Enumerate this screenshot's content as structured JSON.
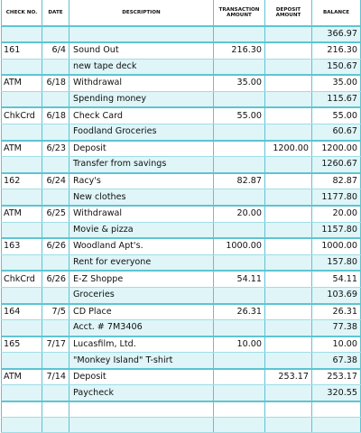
{
  "headers": {
    "check": "CHECK NO.",
    "date": "DATE",
    "description": "DESCRIPTION",
    "transaction": "TRANSACTION AMOUNT",
    "deposit": "DEPOSIT AMOUNT",
    "balance": "BALANCE"
  },
  "opening_balance": "366.97",
  "entries": [
    {
      "check": "161",
      "date": "6/4",
      "description": "Sound Out",
      "note": "new tape deck",
      "transaction": "216.30",
      "deposit": "",
      "balance_after_tx": "216.30",
      "balance": "150.67"
    },
    {
      "check": "ATM",
      "date": "6/18",
      "description": "Withdrawal",
      "note": "Spending money",
      "transaction": "35.00",
      "deposit": "",
      "balance_after_tx": "35.00",
      "balance": "115.67"
    },
    {
      "check": "ChkCrd",
      "date": "6/18",
      "description": "Check Card",
      "note": "Foodland Groceries",
      "transaction": "55.00",
      "deposit": "",
      "balance_after_tx": "55.00",
      "balance": "60.67"
    },
    {
      "check": "ATM",
      "date": "6/23",
      "description": "Deposit",
      "note": "Transfer from savings",
      "transaction": "",
      "deposit": "1200.00",
      "balance_after_tx": "1200.00",
      "balance": "1260.67"
    },
    {
      "check": "162",
      "date": "6/24",
      "description": "Racy's",
      "note": "New clothes",
      "transaction": "82.87",
      "deposit": "",
      "balance_after_tx": "82.87",
      "balance": "1177.80"
    },
    {
      "check": "ATM",
      "date": "6/25",
      "description": "Withdrawal",
      "note": "Movie & pizza",
      "transaction": "20.00",
      "deposit": "",
      "balance_after_tx": "20.00",
      "balance": "1157.80"
    },
    {
      "check": "163",
      "date": "6/26",
      "description": "Woodland Apt's.",
      "note": "Rent for everyone",
      "transaction": "1000.00",
      "deposit": "",
      "balance_after_tx": "1000.00",
      "balance": "157.80"
    },
    {
      "check": "ChkCrd",
      "date": "6/26",
      "description": "E-Z Shoppe",
      "note": "Groceries",
      "transaction": "54.11",
      "deposit": "",
      "balance_after_tx": "54.11",
      "balance": "103.69"
    },
    {
      "check": "164",
      "date": "7/5",
      "description": "CD Place",
      "note": "Acct. # 7M3406",
      "transaction": "26.31",
      "deposit": "",
      "balance_after_tx": "26.31",
      "balance": "77.38"
    },
    {
      "check": "165",
      "date": "7/17",
      "description": "Lucasfilm, Ltd.",
      "note": "\"Monkey Island\" T-shirt",
      "transaction": "10.00",
      "deposit": "",
      "balance_after_tx": "10.00",
      "balance": "67.38"
    },
    {
      "check": "ATM",
      "date": "7/14",
      "description": "Deposit",
      "note": "Paycheck",
      "transaction": "",
      "deposit": "253.17",
      "balance_after_tx": "253.17",
      "balance": "320.55"
    }
  ]
}
